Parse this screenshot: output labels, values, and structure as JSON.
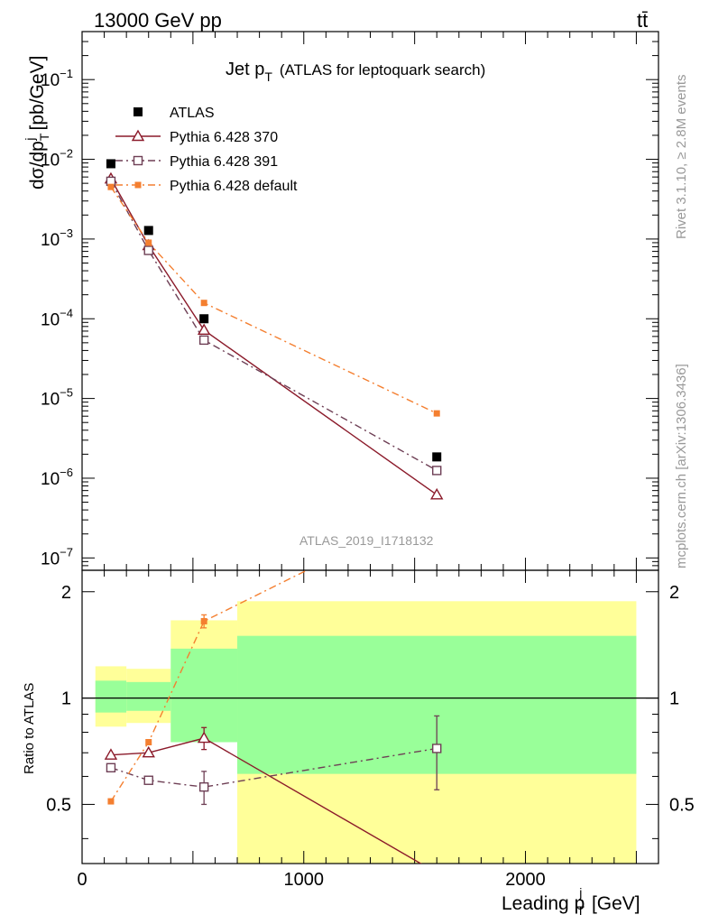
{
  "header": {
    "energy": "13000 GeV pp",
    "process": "tt̄",
    "plot_title_main": "Jet p",
    "plot_title_sub": "T",
    "plot_title_rest": "(ATLAS for leptoquark search)",
    "side_rivet": "Rivet 3.1.10, ≥ 2.8M events",
    "side_mcplots": "mcplots.cern.ch [arXiv:1306.3436]",
    "analysis_id": "ATLAS_2019_I1718132"
  },
  "axes": {
    "y_label_main": "dσ/dp",
    "y_label_sub": "T",
    "y_label_sup": "j",
    "y_label_unit": "[pb/GeV]",
    "ratio_label": "Ratio to ATLAS",
    "x_label_main": "Leading p",
    "x_label_sup": "j",
    "x_label_sub": "T",
    "x_label_unit": "[GeV]",
    "x_ticks": [
      "0",
      "1000",
      "2000"
    ],
    "y_ticks": [
      {
        "base": "10",
        "exp": "−1"
      },
      {
        "base": "10",
        "exp": "−2"
      },
      {
        "base": "10",
        "exp": "−3"
      },
      {
        "base": "10",
        "exp": "−4"
      },
      {
        "base": "10",
        "exp": "−5"
      },
      {
        "base": "10",
        "exp": "−6"
      },
      {
        "base": "10",
        "exp": "−7"
      }
    ],
    "ratio_ticks": [
      "0.5",
      "1",
      "2"
    ]
  },
  "legend": [
    {
      "label": "ATLAS"
    },
    {
      "label": "Pythia 6.428 370"
    },
    {
      "label": "Pythia 6.428 391"
    },
    {
      "label": "Pythia 6.428 default"
    }
  ],
  "chart_data": {
    "type": "scatter",
    "x_scale": "linear",
    "y_scale": "log",
    "xlim": [
      0,
      2600
    ],
    "ylim": [
      7e-08,
      0.4
    ],
    "ratio_ylim": [
      0.34,
      2.3
    ],
    "bins": [
      [
        60,
        200
      ],
      [
        200,
        400
      ],
      [
        400,
        700
      ],
      [
        700,
        2500
      ]
    ],
    "x": [
      130,
      300,
      550,
      1600
    ],
    "series": [
      {
        "name": "ATLAS",
        "color": "#000000",
        "marker": "filled-square",
        "values": [
          0.0088,
          0.00128,
          0.0001,
          1.85e-06
        ]
      },
      {
        "name": "Pythia 6.428 370",
        "color": "#8b1a2a",
        "marker": "open-triangle",
        "linestyle": "solid",
        "values": [
          0.0057,
          0.00083,
          7.2e-05,
          6.2e-07
        ],
        "ratio": [
          0.69,
          0.7,
          0.77,
          0.32
        ],
        "ratio_err": [
          0,
          0,
          0.055,
          0
        ]
      },
      {
        "name": "Pythia 6.428 391",
        "color": "#6e3f55",
        "marker": "open-square",
        "linestyle": "dash-dot",
        "values": [
          0.0053,
          0.00072,
          5.4e-05,
          1.25e-06
        ],
        "ratio": [
          0.635,
          0.585,
          0.56,
          0.72
        ],
        "ratio_err": [
          0,
          0,
          0.06,
          0.17
        ]
      },
      {
        "name": "Pythia 6.428 default",
        "color": "#f47f30",
        "marker": "filled-square-small",
        "linestyle": "dash-dot",
        "values": [
          0.0045,
          0.0009,
          0.000158,
          6.5e-06
        ],
        "ratio": [
          0.51,
          0.75,
          1.65,
          3.5
        ],
        "ratio_err": [
          0,
          0,
          0.07,
          0
        ]
      }
    ],
    "ratio_band_yellow": [
      [
        0.83,
        1.23
      ],
      [
        0.85,
        1.21
      ],
      [
        0.75,
        1.66
      ],
      [
        0.34,
        1.88
      ]
    ],
    "ratio_band_green": [
      [
        0.91,
        1.12
      ],
      [
        0.92,
        1.11
      ],
      [
        0.75,
        1.38
      ],
      [
        0.61,
        1.5
      ]
    ]
  }
}
